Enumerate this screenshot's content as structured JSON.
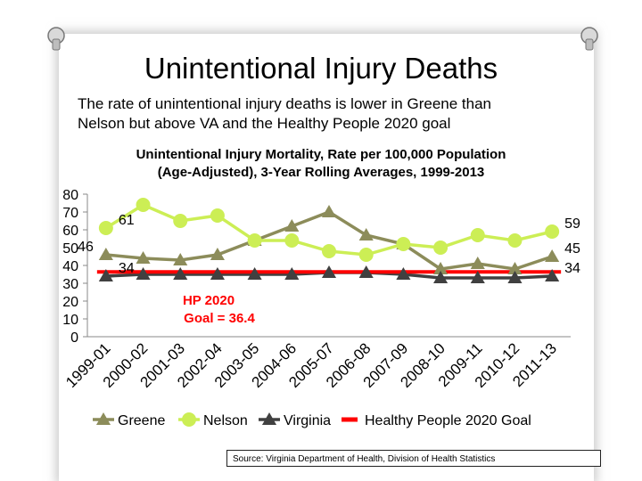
{
  "slide": {
    "title": "Unintentional Injury Deaths",
    "subtitle": "The rate of unintentional injury deaths is lower in Greene than Nelson but above VA and the Healthy People 2020 goal",
    "source": "Source: Virginia Department of Health, Division of Health Statistics"
  },
  "chart_data": {
    "type": "line",
    "title": "Unintentional Injury Mortality, Rate per 100,000 Population (Age-Adjusted), 3-Year Rolling Averages, 1999-2013",
    "title_lines": [
      "Unintentional Injury Mortality, Rate per 100,000 Population",
      "(Age-Adjusted), 3-Year Rolling Averages, 1999-2013"
    ],
    "categories": [
      "1999-01",
      "2000-02",
      "2001-03",
      "2002-04",
      "2003-05",
      "2004-06",
      "2005-07",
      "2006-08",
      "2007-09",
      "2008-10",
      "2009-11",
      "2010-12",
      "2011-13"
    ],
    "ylim": [
      0,
      80
    ],
    "yticks": [
      0,
      10,
      20,
      30,
      40,
      50,
      60,
      70,
      80
    ],
    "series": [
      {
        "name": "Greene",
        "color": "#8c8c5a",
        "marker": "triangle",
        "values": [
          46,
          44,
          43,
          46,
          54,
          62,
          70,
          57,
          52,
          38,
          41,
          38,
          45
        ]
      },
      {
        "name": "Nelson",
        "color": "#ccee55",
        "marker": "circle",
        "values": [
          61,
          74,
          65,
          68,
          54,
          54,
          48,
          46,
          52,
          50,
          57,
          54,
          59
        ]
      },
      {
        "name": "Virginia",
        "color": "#404040",
        "marker": "triangle",
        "values": [
          34,
          35,
          35,
          35,
          35,
          35,
          36,
          36,
          35,
          33,
          33,
          33,
          34
        ]
      },
      {
        "name": "Healthy People 2020 Goal",
        "color": "#ff0000",
        "marker": "none",
        "values": [
          36.4,
          36.4,
          36.4,
          36.4,
          36.4,
          36.4,
          36.4,
          36.4,
          36.4,
          36.4,
          36.4,
          36.4,
          36.4
        ]
      }
    ],
    "data_labels": [
      {
        "text": "61",
        "series": "Nelson",
        "index": 0,
        "side": "right"
      },
      {
        "text": "46",
        "series": "Greene",
        "index": 0,
        "side": "left"
      },
      {
        "text": "34",
        "series": "Virginia",
        "index": 0,
        "side": "right"
      },
      {
        "text": "59",
        "series": "Nelson",
        "index": 12,
        "side": "right"
      },
      {
        "text": "45",
        "series": "Greene",
        "index": 12,
        "side": "right"
      },
      {
        "text": "34",
        "series": "Virginia",
        "index": 12,
        "side": "right"
      }
    ],
    "annotation": {
      "lines": [
        "HP 2020",
        "Goal = 36.4"
      ],
      "color": "#ff0000"
    },
    "legend_position": "bottom",
    "grid": false
  }
}
